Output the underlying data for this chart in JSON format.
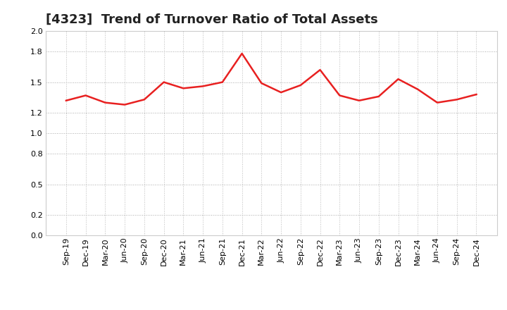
{
  "title": "[4323]  Trend of Turnover Ratio of Total Assets",
  "labels": [
    "Sep-19",
    "Dec-19",
    "Mar-20",
    "Jun-20",
    "Sep-20",
    "Dec-20",
    "Mar-21",
    "Jun-21",
    "Sep-21",
    "Dec-21",
    "Mar-22",
    "Jun-22",
    "Sep-22",
    "Dec-22",
    "Mar-23",
    "Jun-23",
    "Sep-23",
    "Dec-23",
    "Mar-24",
    "Jun-24",
    "Sep-24",
    "Dec-24"
  ],
  "values": [
    1.32,
    1.37,
    1.3,
    1.28,
    1.33,
    1.5,
    1.44,
    1.46,
    1.5,
    1.78,
    1.49,
    1.4,
    1.47,
    1.62,
    1.37,
    1.32,
    1.36,
    1.53,
    1.43,
    1.3,
    1.33,
    1.38
  ],
  "line_color": "#e82020",
  "line_width": 1.8,
  "bg_color": "#ffffff",
  "plot_bg_color": "#ffffff",
  "grid_color_h": "#aaaaaa",
  "grid_color_v": "#bbbbbb",
  "ylim": [
    0.0,
    2.0
  ],
  "yticks": [
    0.0,
    0.2,
    0.5,
    0.8,
    1.0,
    1.2,
    1.5,
    1.8,
    2.0
  ],
  "title_fontsize": 13,
  "tick_fontsize": 8,
  "title_color": "#222222"
}
